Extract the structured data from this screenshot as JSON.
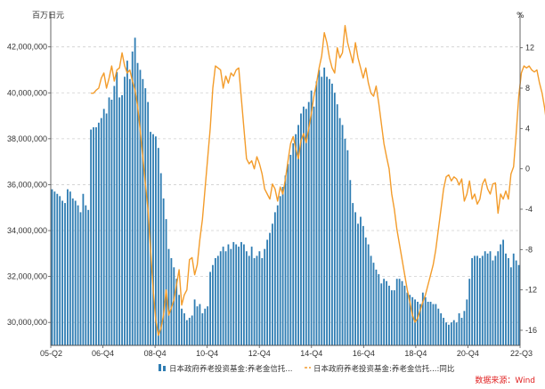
{
  "chart_data": {
    "type": "bar-line-combo",
    "left_unit": "百万日元",
    "right_unit": "%",
    "x_tick_labels": [
      "05-Q2",
      "06-Q4",
      "08-Q4",
      "10-Q4",
      "12-Q4",
      "14-Q4",
      "16-Q4",
      "18-Q4",
      "20-Q4",
      "22-Q3"
    ],
    "y_left": {
      "min": 29000000,
      "max": 43500000,
      "ticks": [
        30000000,
        32000000,
        34000000,
        36000000,
        38000000,
        40000000,
        42000000
      ],
      "tick_labels": [
        "30,000,000",
        "32,000,000",
        "34,000,000",
        "36,000,000",
        "38,000,000",
        "40,000,000",
        "42,000,000"
      ]
    },
    "y_right": {
      "min": -17.5,
      "max": 15.5,
      "ticks": [
        -16,
        -12,
        -8,
        -4,
        0,
        4,
        8,
        12
      ],
      "tick_labels": [
        "-16",
        "-12",
        "-8",
        "-4",
        "0",
        "4",
        "8",
        "12"
      ]
    },
    "grid": "horizontal dashed",
    "legend_placement": "bottom",
    "series": [
      {
        "name": "日本政府养老投资基金:养老金信托...",
        "type": "bar",
        "color": "#2f7db3",
        "axis": "left",
        "values": [
          35800000,
          35700000,
          35600000,
          35500000,
          35300000,
          35200000,
          35800000,
          35700000,
          35400000,
          35300000,
          35100000,
          34800000,
          35600000,
          35100000,
          34900000,
          38400000,
          38500000,
          38500000,
          38700000,
          38900000,
          39300000,
          39100000,
          39800000,
          39700000,
          40300000,
          40900000,
          39800000,
          39900000,
          40700000,
          41400000,
          40600000,
          41800000,
          42400000,
          41300000,
          41000000,
          40600000,
          40200000,
          39600000,
          38300000,
          38200000,
          38100000,
          37600000,
          36500000,
          35400000,
          34500000,
          33200000,
          32800000,
          32400000,
          31900000,
          31200000,
          30600000,
          30400000,
          30100000,
          30200000,
          30300000,
          31000000,
          30700000,
          30800000,
          30400000,
          30600000,
          30700000,
          32200000,
          32500000,
          32800000,
          32900000,
          33100000,
          33300000,
          33100000,
          33400000,
          33200000,
          33500000,
          33400000,
          33300000,
          33500000,
          33400000,
          33100000,
          32900000,
          33300000,
          32800000,
          32900000,
          33100000,
          32800000,
          33200000,
          33600000,
          33900000,
          34300000,
          34800000,
          35100000,
          35500000,
          35900000,
          36400000,
          36900000,
          37300000,
          37800000,
          38200000,
          38600000,
          39100000,
          39400000,
          39300000,
          39600000,
          40100000,
          39400000,
          40500000,
          41000000,
          40700000,
          41100000,
          40700000,
          40600000,
          40400000,
          40000000,
          39500000,
          38900000,
          38600000,
          38000000,
          37500000,
          36200000,
          35200000,
          34800000,
          34300000,
          34600000,
          34200000,
          33700000,
          33400000,
          32900000,
          32600000,
          32300000,
          32100000,
          31700000,
          31900000,
          31800000,
          31600000,
          31400000,
          31400000,
          31900000,
          31900000,
          31800000,
          31600000,
          31300000,
          31200000,
          31100000,
          31000000,
          30900000,
          30800000,
          31300000,
          31100000,
          30900000,
          30900000,
          30800000,
          30800000,
          30600000,
          30400000,
          30200000,
          30000000,
          29900000,
          30000000,
          30100000,
          30000000,
          30400000,
          30200000,
          30500000,
          31000000,
          31900000,
          32800000,
          32900000,
          32900000,
          32800000,
          32900000,
          33100000,
          33000000,
          33100000,
          32700000,
          32900000,
          33100000,
          33400000,
          33600000,
          33000000,
          32800000,
          32400000,
          33000000,
          32700000,
          32500000
        ]
      },
      {
        "name": "日本政府养老投资基金:养老金信托...:同比",
        "type": "line",
        "color": "#f39c2b",
        "axis": "right",
        "x_start_index": 15,
        "values": [
          7.5,
          7.5,
          7.8,
          8,
          9,
          9.5,
          8,
          9,
          10.2,
          8.7,
          9.8,
          10,
          11.5,
          10.2,
          9.5,
          9.8,
          8.7,
          7.8,
          6.2,
          3.8,
          1.2,
          -1.5,
          -4,
          -8,
          -12,
          -15,
          -16.5,
          -15.8,
          -14.5,
          -12,
          -14.5,
          -13.8,
          -13,
          -11.5,
          -10,
          -13.5,
          -12.5,
          -12,
          -9,
          -8.8,
          -10.5,
          -9.5,
          -7,
          -5,
          -2,
          1,
          4,
          8,
          10.2,
          10,
          9.8,
          8,
          9.2,
          8.5,
          9.5,
          9.2,
          9.8,
          10,
          7,
          4,
          1,
          0.5,
          0.8,
          0,
          1.2,
          0.5,
          -0.5,
          -2,
          -2.5,
          -3,
          -1.5,
          -2,
          -3.2,
          -1.8,
          -2.5,
          -1,
          0.8,
          2.5,
          3.2,
          2,
          1,
          2.8,
          3.5,
          2.6,
          4,
          5.5,
          7.2,
          8.5,
          10,
          11.2,
          13.5,
          12.5,
          11,
          10,
          9.5,
          12,
          11,
          11.5,
          14.2,
          12.5,
          11.5,
          10.5,
          12.5,
          11,
          10,
          9,
          10,
          8.5,
          7.5,
          7.2,
          8.2,
          6.5,
          4.5,
          2.5,
          1.2,
          0,
          -2.5,
          -4,
          -6,
          -7.5,
          -9,
          -10.5,
          -12,
          -13.2,
          -14.5,
          -15.2,
          -14.8,
          -14,
          -13.2,
          -12.5,
          -11.5,
          -10.5,
          -9.5,
          -8,
          -6,
          -4,
          -2,
          -0.8,
          -0.6,
          -1.2,
          -0.8,
          -1,
          -1.6,
          -1,
          -3.2,
          -2.5,
          -1.2,
          -3,
          -2.5,
          -3.5,
          -3,
          -1.5,
          -1,
          -2,
          -2.5,
          -1.5,
          -1.4,
          -4.4,
          -2.5,
          -3,
          -2.2,
          -3,
          -0.5,
          0.2,
          3.5,
          7.2,
          9.5,
          10.2,
          10,
          10.2,
          9.8,
          9.6,
          9.8,
          8.5,
          7.5,
          6,
          4,
          0.5,
          -0.5,
          -0.8
        ]
      }
    ]
  },
  "legend": {
    "bar_label": "日本政府养老投资基金:养老金信托...",
    "line_label": "日本政府养老投资基金:养老金信托...:同比"
  },
  "source": "数据来源：Wind"
}
